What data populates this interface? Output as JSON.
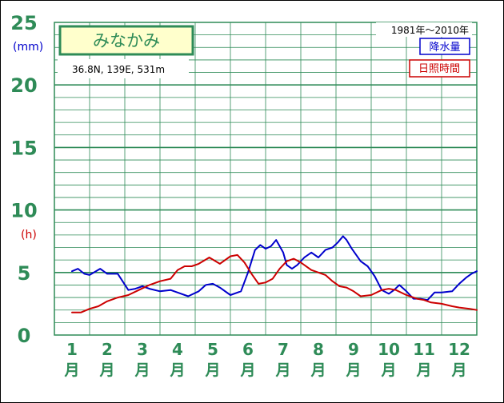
{
  "chart_data": {
    "type": "line",
    "title": "みなかみ",
    "subtitle": "36.8N,  139E,  531m",
    "period": "1981年〜2010年",
    "y_unit_top": "(mm)",
    "y_unit_bottom": "(h)",
    "ylim": [
      0,
      25
    ],
    "yticks": [
      "0",
      "5",
      "10",
      "15",
      "20",
      "25"
    ],
    "months": [
      "1",
      "2",
      "3",
      "4",
      "5",
      "6",
      "7",
      "8",
      "9",
      "10",
      "11",
      "12"
    ],
    "month_suffix": "月",
    "series": [
      {
        "name": "降水量",
        "color": "#0000cc",
        "x": [
          1.0,
          1.17,
          1.35,
          1.5,
          1.8,
          2.0,
          2.3,
          2.6,
          2.8,
          3.0,
          3.2,
          3.5,
          3.8,
          4.0,
          4.3,
          4.6,
          4.8,
          5.0,
          5.2,
          5.5,
          5.8,
          6.0,
          6.2,
          6.35,
          6.5,
          6.65,
          6.8,
          7.0,
          7.1,
          7.25,
          7.4,
          7.6,
          7.8,
          8.0,
          8.2,
          8.4,
          8.55,
          8.7,
          8.8,
          8.95,
          9.2,
          9.4,
          9.6,
          9.8,
          10.0,
          10.15,
          10.3,
          10.5,
          10.7,
          10.9,
          11.1,
          11.3,
          11.5,
          11.8,
          12.0,
          12.2,
          12.35,
          12.5
        ],
        "values": [
          5.1,
          5.3,
          4.9,
          4.8,
          5.3,
          4.9,
          4.9,
          3.6,
          3.7,
          3.9,
          3.7,
          3.5,
          3.6,
          3.4,
          3.1,
          3.5,
          4.0,
          4.1,
          3.8,
          3.2,
          3.5,
          5.0,
          6.8,
          7.2,
          6.9,
          7.1,
          7.6,
          6.6,
          5.6,
          5.3,
          5.6,
          6.2,
          6.6,
          6.2,
          6.8,
          7.0,
          7.4,
          7.9,
          7.6,
          6.9,
          5.9,
          5.5,
          4.7,
          3.6,
          3.3,
          3.6,
          4.0,
          3.5,
          2.9,
          2.9,
          2.8,
          3.4,
          3.4,
          3.5,
          4.1,
          4.6,
          4.9,
          5.1
        ]
      },
      {
        "name": "日照時間",
        "color": "#cc0000",
        "x": [
          1.0,
          1.25,
          1.5,
          1.75,
          2.0,
          2.3,
          2.6,
          2.9,
          3.2,
          3.5,
          3.8,
          4.0,
          4.2,
          4.4,
          4.6,
          4.9,
          5.2,
          5.5,
          5.7,
          5.9,
          6.1,
          6.3,
          6.5,
          6.7,
          6.9,
          7.1,
          7.3,
          7.5,
          7.8,
          8.0,
          8.2,
          8.4,
          8.6,
          8.8,
          9.0,
          9.2,
          9.5,
          9.8,
          10.0,
          10.2,
          10.5,
          10.8,
          11.0,
          11.2,
          11.5,
          11.8,
          12.0,
          12.3,
          12.5
        ],
        "values": [
          1.8,
          1.8,
          2.1,
          2.3,
          2.7,
          3.0,
          3.2,
          3.6,
          4.0,
          4.3,
          4.5,
          5.2,
          5.5,
          5.5,
          5.7,
          6.2,
          5.7,
          6.3,
          6.4,
          5.8,
          4.9,
          4.1,
          4.2,
          4.5,
          5.3,
          5.9,
          6.1,
          5.8,
          5.2,
          5.0,
          4.8,
          4.3,
          3.9,
          3.8,
          3.5,
          3.1,
          3.2,
          3.6,
          3.7,
          3.6,
          3.2,
          2.9,
          2.8,
          2.6,
          2.5,
          2.3,
          2.2,
          2.1,
          2.0
        ]
      }
    ]
  }
}
